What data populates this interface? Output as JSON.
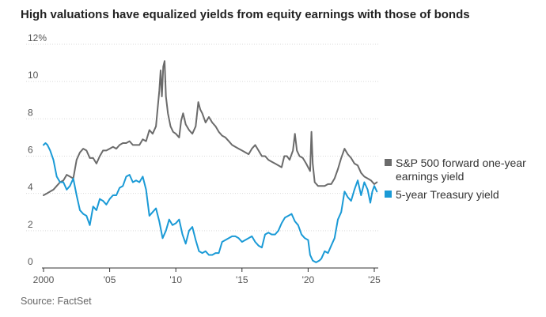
{
  "title": "High valuations have equalized yields from equity earnings with those of bonds",
  "source": "Source: FactSet",
  "colors": {
    "sp500": "#6b6b6b",
    "treasury": "#1a9ad6",
    "axis": "#333333",
    "grid": "#d9d9d9",
    "tick_text": "#555555"
  },
  "chart_data": {
    "type": "line",
    "title": "High valuations have equalized yields from equity earnings with those of bonds",
    "xlabel": "",
    "ylabel": "",
    "xlim": [
      2000,
      2025.3
    ],
    "ylim": [
      0,
      12
    ],
    "y_ticks": [
      0,
      2,
      4,
      6,
      8,
      10,
      12
    ],
    "y_tick_labels": [
      "0",
      "2",
      "4",
      "6",
      "8",
      "10",
      "12%"
    ],
    "x_ticks": [
      2000,
      2005,
      2010,
      2015,
      2020,
      2025
    ],
    "x_tick_labels": [
      "2000",
      "'05",
      "'10",
      "'15",
      "'20",
      "'25"
    ],
    "grid": true,
    "legend_position": "right",
    "series": [
      {
        "name": "S&P 500 forward one-year earnings yield",
        "color": "#6b6b6b",
        "points": [
          [
            2000.0,
            3.9
          ],
          [
            2000.25,
            4.0
          ],
          [
            2000.5,
            4.1
          ],
          [
            2000.75,
            4.2
          ],
          [
            2001.0,
            4.4
          ],
          [
            2001.25,
            4.6
          ],
          [
            2001.5,
            4.7
          ],
          [
            2001.75,
            5.0
          ],
          [
            2002.0,
            4.9
          ],
          [
            2002.25,
            4.8
          ],
          [
            2002.5,
            5.8
          ],
          [
            2002.75,
            6.2
          ],
          [
            2003.0,
            6.4
          ],
          [
            2003.25,
            6.3
          ],
          [
            2003.5,
            5.9
          ],
          [
            2003.75,
            5.9
          ],
          [
            2004.0,
            5.6
          ],
          [
            2004.25,
            6.0
          ],
          [
            2004.5,
            6.3
          ],
          [
            2004.75,
            6.3
          ],
          [
            2005.0,
            6.4
          ],
          [
            2005.25,
            6.5
          ],
          [
            2005.5,
            6.4
          ],
          [
            2005.75,
            6.6
          ],
          [
            2006.0,
            6.7
          ],
          [
            2006.25,
            6.7
          ],
          [
            2006.5,
            6.8
          ],
          [
            2006.75,
            6.6
          ],
          [
            2007.0,
            6.6
          ],
          [
            2007.25,
            6.6
          ],
          [
            2007.5,
            6.9
          ],
          [
            2007.75,
            6.8
          ],
          [
            2008.0,
            7.4
          ],
          [
            2008.25,
            7.2
          ],
          [
            2008.5,
            7.6
          ],
          [
            2008.75,
            9.5
          ],
          [
            2008.85,
            10.6
          ],
          [
            2008.95,
            9.2
          ],
          [
            2009.05,
            10.8
          ],
          [
            2009.15,
            11.1
          ],
          [
            2009.25,
            9.2
          ],
          [
            2009.4,
            8.3
          ],
          [
            2009.6,
            7.6
          ],
          [
            2009.8,
            7.3
          ],
          [
            2010.0,
            7.2
          ],
          [
            2010.25,
            7.0
          ],
          [
            2010.4,
            7.9
          ],
          [
            2010.55,
            8.3
          ],
          [
            2010.75,
            7.7
          ],
          [
            2011.0,
            7.4
          ],
          [
            2011.25,
            7.2
          ],
          [
            2011.5,
            7.6
          ],
          [
            2011.7,
            8.9
          ],
          [
            2011.85,
            8.5
          ],
          [
            2012.0,
            8.3
          ],
          [
            2012.25,
            7.8
          ],
          [
            2012.5,
            8.1
          ],
          [
            2012.75,
            7.8
          ],
          [
            2013.0,
            7.6
          ],
          [
            2013.25,
            7.3
          ],
          [
            2013.5,
            7.1
          ],
          [
            2013.75,
            7.0
          ],
          [
            2014.0,
            6.8
          ],
          [
            2014.25,
            6.6
          ],
          [
            2014.5,
            6.5
          ],
          [
            2014.75,
            6.4
          ],
          [
            2015.0,
            6.3
          ],
          [
            2015.25,
            6.2
          ],
          [
            2015.5,
            6.1
          ],
          [
            2015.75,
            6.4
          ],
          [
            2016.0,
            6.6
          ],
          [
            2016.25,
            6.3
          ],
          [
            2016.5,
            6.0
          ],
          [
            2016.75,
            6.0
          ],
          [
            2017.0,
            5.8
          ],
          [
            2017.25,
            5.7
          ],
          [
            2017.5,
            5.6
          ],
          [
            2017.75,
            5.5
          ],
          [
            2018.0,
            5.4
          ],
          [
            2018.2,
            6.0
          ],
          [
            2018.4,
            6.0
          ],
          [
            2018.6,
            5.8
          ],
          [
            2018.85,
            6.3
          ],
          [
            2019.0,
            7.2
          ],
          [
            2019.15,
            6.3
          ],
          [
            2019.35,
            6.0
          ],
          [
            2019.6,
            5.9
          ],
          [
            2019.85,
            5.6
          ],
          [
            2020.0,
            5.4
          ],
          [
            2020.15,
            5.2
          ],
          [
            2020.25,
            7.3
          ],
          [
            2020.35,
            5.6
          ],
          [
            2020.5,
            4.6
          ],
          [
            2020.75,
            4.4
          ],
          [
            2021.0,
            4.4
          ],
          [
            2021.25,
            4.4
          ],
          [
            2021.5,
            4.5
          ],
          [
            2021.75,
            4.5
          ],
          [
            2022.0,
            4.8
          ],
          [
            2022.25,
            5.3
          ],
          [
            2022.5,
            5.9
          ],
          [
            2022.75,
            6.4
          ],
          [
            2023.0,
            6.1
          ],
          [
            2023.25,
            5.9
          ],
          [
            2023.5,
            5.6
          ],
          [
            2023.75,
            5.5
          ],
          [
            2024.0,
            5.1
          ],
          [
            2024.25,
            4.9
          ],
          [
            2024.5,
            4.8
          ],
          [
            2024.75,
            4.7
          ],
          [
            2025.0,
            4.5
          ],
          [
            2025.2,
            4.6
          ]
        ]
      },
      {
        "name": "5-year Treasury yield",
        "color": "#1a9ad6",
        "points": [
          [
            2000.0,
            6.6
          ],
          [
            2000.15,
            6.7
          ],
          [
            2000.3,
            6.6
          ],
          [
            2000.5,
            6.3
          ],
          [
            2000.75,
            5.8
          ],
          [
            2001.0,
            4.9
          ],
          [
            2001.25,
            4.6
          ],
          [
            2001.5,
            4.6
          ],
          [
            2001.75,
            4.2
          ],
          [
            2002.0,
            4.4
          ],
          [
            2002.25,
            4.8
          ],
          [
            2002.5,
            3.9
          ],
          [
            2002.75,
            3.1
          ],
          [
            2003.0,
            2.9
          ],
          [
            2003.25,
            2.8
          ],
          [
            2003.5,
            2.3
          ],
          [
            2003.75,
            3.3
          ],
          [
            2004.0,
            3.1
          ],
          [
            2004.25,
            3.7
          ],
          [
            2004.5,
            3.6
          ],
          [
            2004.75,
            3.4
          ],
          [
            2005.0,
            3.7
          ],
          [
            2005.25,
            3.9
          ],
          [
            2005.5,
            3.9
          ],
          [
            2005.75,
            4.3
          ],
          [
            2006.0,
            4.4
          ],
          [
            2006.25,
            4.9
          ],
          [
            2006.5,
            5.0
          ],
          [
            2006.75,
            4.6
          ],
          [
            2007.0,
            4.7
          ],
          [
            2007.25,
            4.6
          ],
          [
            2007.5,
            4.9
          ],
          [
            2007.75,
            4.2
          ],
          [
            2008.0,
            2.8
          ],
          [
            2008.25,
            3.0
          ],
          [
            2008.5,
            3.2
          ],
          [
            2008.75,
            2.5
          ],
          [
            2009.0,
            1.6
          ],
          [
            2009.25,
            2.0
          ],
          [
            2009.5,
            2.6
          ],
          [
            2009.75,
            2.3
          ],
          [
            2010.0,
            2.4
          ],
          [
            2010.25,
            2.6
          ],
          [
            2010.5,
            1.8
          ],
          [
            2010.75,
            1.3
          ],
          [
            2011.0,
            2.0
          ],
          [
            2011.25,
            2.2
          ],
          [
            2011.5,
            1.5
          ],
          [
            2011.75,
            0.9
          ],
          [
            2012.0,
            0.8
          ],
          [
            2012.25,
            0.9
          ],
          [
            2012.5,
            0.7
          ],
          [
            2012.75,
            0.7
          ],
          [
            2013.0,
            0.8
          ],
          [
            2013.25,
            0.8
          ],
          [
            2013.5,
            1.4
          ],
          [
            2013.75,
            1.5
          ],
          [
            2014.0,
            1.6
          ],
          [
            2014.25,
            1.7
          ],
          [
            2014.5,
            1.7
          ],
          [
            2014.75,
            1.6
          ],
          [
            2015.0,
            1.4
          ],
          [
            2015.25,
            1.5
          ],
          [
            2015.5,
            1.6
          ],
          [
            2015.75,
            1.7
          ],
          [
            2016.0,
            1.4
          ],
          [
            2016.25,
            1.2
          ],
          [
            2016.5,
            1.1
          ],
          [
            2016.75,
            1.8
          ],
          [
            2017.0,
            1.9
          ],
          [
            2017.25,
            1.8
          ],
          [
            2017.5,
            1.8
          ],
          [
            2017.75,
            2.0
          ],
          [
            2018.0,
            2.4
          ],
          [
            2018.25,
            2.7
          ],
          [
            2018.5,
            2.8
          ],
          [
            2018.75,
            2.9
          ],
          [
            2019.0,
            2.5
          ],
          [
            2019.25,
            2.3
          ],
          [
            2019.5,
            1.8
          ],
          [
            2019.75,
            1.6
          ],
          [
            2020.0,
            1.5
          ],
          [
            2020.15,
            0.7
          ],
          [
            2020.35,
            0.4
          ],
          [
            2020.6,
            0.3
          ],
          [
            2020.85,
            0.4
          ],
          [
            2021.0,
            0.5
          ],
          [
            2021.25,
            0.9
          ],
          [
            2021.5,
            0.8
          ],
          [
            2021.75,
            1.2
          ],
          [
            2022.0,
            1.6
          ],
          [
            2022.25,
            2.6
          ],
          [
            2022.5,
            3.0
          ],
          [
            2022.75,
            4.1
          ],
          [
            2023.0,
            3.8
          ],
          [
            2023.25,
            3.6
          ],
          [
            2023.5,
            4.2
          ],
          [
            2023.75,
            4.7
          ],
          [
            2024.0,
            3.9
          ],
          [
            2024.25,
            4.6
          ],
          [
            2024.5,
            4.2
          ],
          [
            2024.7,
            3.5
          ],
          [
            2024.85,
            4.1
          ],
          [
            2025.0,
            4.4
          ],
          [
            2025.2,
            4.1
          ]
        ]
      }
    ]
  }
}
